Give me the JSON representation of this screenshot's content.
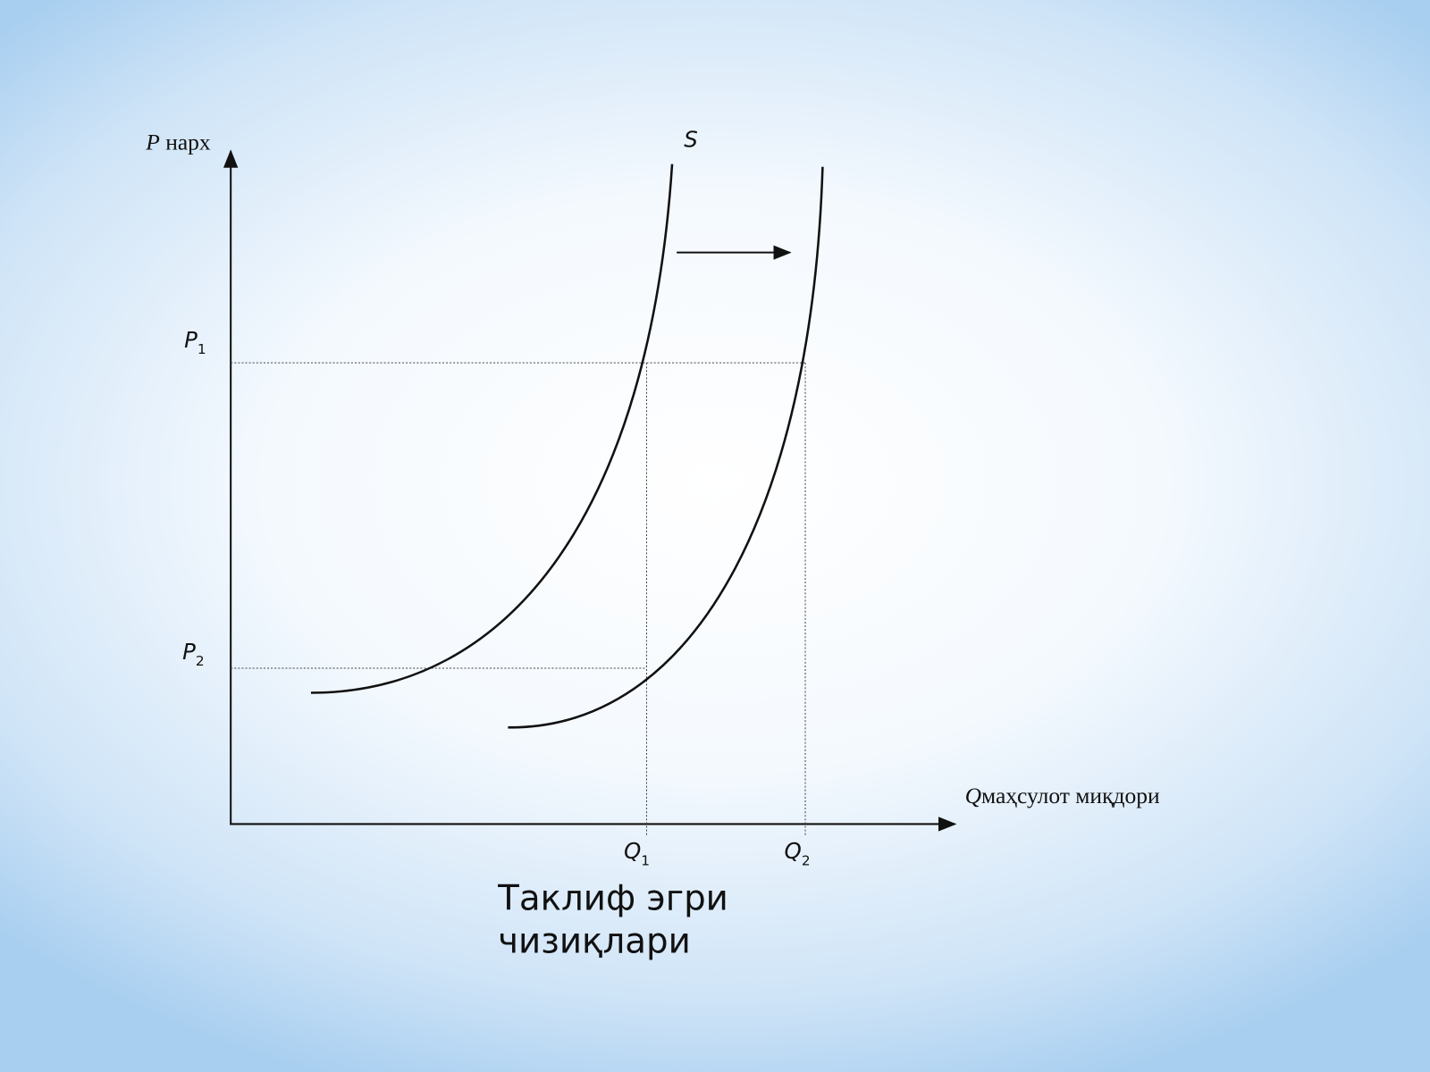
{
  "diagram": {
    "y_axis_label": {
      "symbol": "P",
      "word": "нарх"
    },
    "x_axis_label": {
      "symbol": "Q",
      "word": "маҳсулот миқдори"
    },
    "curve_label": "S",
    "price_labels": [
      {
        "symbol": "P",
        "sub": "1"
      },
      {
        "symbol": "P",
        "sub": "2"
      }
    ],
    "quantity_labels": [
      {
        "symbol": "Q",
        "sub": "1"
      },
      {
        "symbol": "Q",
        "sub": "2"
      }
    ],
    "caption": [
      "Таклиф эгри",
      "чизиқлари"
    ]
  }
}
